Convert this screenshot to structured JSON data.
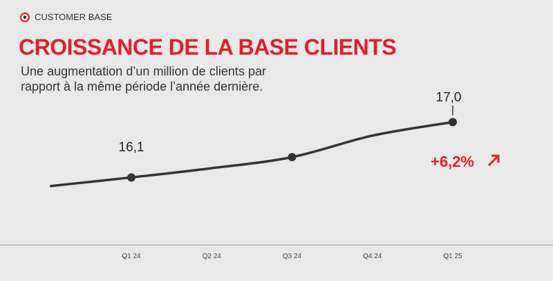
{
  "chart_data": {
    "type": "line",
    "tag": "CUSTOMER BASE",
    "title": "CROISSANCE DE LA BASE  CLIENTS",
    "subtitle": "Une augmentation d’un million de clients par rapport à la même période l’année dernière.",
    "annotation": "+6,2%",
    "categories": [
      null,
      "Q1 24",
      "Q2 24",
      "Q3 24",
      "Q4 24",
      "Q1 25"
    ],
    "values": [
      15.96,
      16.1,
      16.25,
      16.43,
      16.78,
      17.0
    ],
    "value_labels": [
      null,
      "16,1",
      null,
      null,
      null,
      "17,0"
    ],
    "markers": [
      false,
      true,
      false,
      true,
      false,
      true
    ],
    "color": "#333333",
    "accent": "#e0202a",
    "ylim": [
      15,
      17.5
    ]
  }
}
